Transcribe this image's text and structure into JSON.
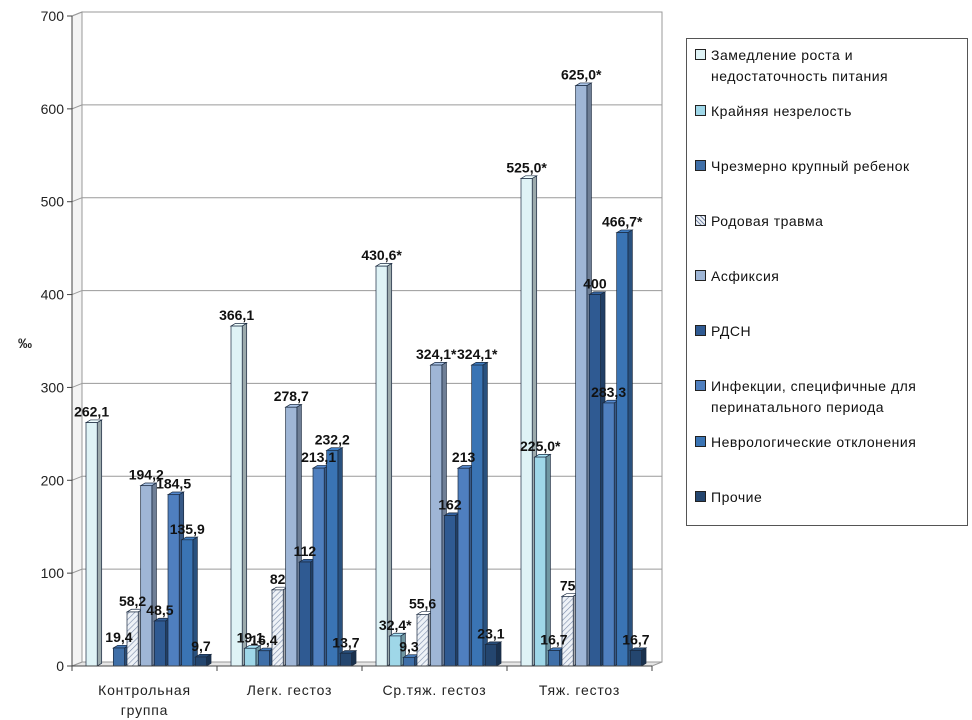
{
  "chart_data": {
    "type": "bar",
    "ylabel": "‰",
    "ylim": [
      0,
      700
    ],
    "yticks": [
      0,
      100,
      200,
      300,
      400,
      500,
      600,
      700
    ],
    "grid": true,
    "legend_position": "right",
    "categories": [
      "Контрольная группа",
      "Легк. гестоз",
      "Ср.тяж. гестоз",
      "Тяж. гестоз"
    ],
    "series": [
      {
        "name": "Замедление роста и недостаточность питания",
        "color": "#dff3f6",
        "values": [
          262.1,
          366.1,
          430.6,
          525.0
        ],
        "labels": [
          "262,1",
          "366,1",
          "430,6*",
          "525,0*"
        ]
      },
      {
        "name": "Крайняя незрелость",
        "color": "#9fd7e8",
        "values": [
          0,
          19.1,
          32.4,
          225.0
        ],
        "labels": [
          "",
          "19,1",
          "32,4*",
          "225,0*"
        ]
      },
      {
        "name": "Чрезмерно крупный ребенок",
        "color": "#3f6fa8",
        "values": [
          19.4,
          16.4,
          9.3,
          16.7
        ],
        "labels": [
          "19,4",
          "16,4",
          "9,3",
          "16,7"
        ]
      },
      {
        "name": "Родовая травма",
        "color": "#eef2f7",
        "pattern": true,
        "values": [
          58.2,
          82,
          55.6,
          75
        ],
        "labels": [
          "58,2",
          "82",
          "55,6",
          "75"
        ]
      },
      {
        "name": "Асфиксия",
        "color": "#9fb6d6",
        "values": [
          194.2,
          278.7,
          324.1,
          625.0
        ],
        "labels": [
          "194,2",
          "278,7",
          "324,1*",
          "625,0*"
        ]
      },
      {
        "name": "РДСН",
        "color": "#2f5a92",
        "values": [
          48.5,
          112,
          162,
          400
        ],
        "labels": [
          "48,5",
          "112",
          "162",
          "400"
        ]
      },
      {
        "name": "Инфекции, специфичные для перинатального периода",
        "color": "#4f7fbf",
        "values": [
          184.5,
          213.1,
          213,
          283.3
        ],
        "labels": [
          "184,5",
          "213,1",
          "213",
          "283,3"
        ]
      },
      {
        "name": "Неврологические отклонения",
        "color": "#3a74b4",
        "values": [
          135.9,
          232.2,
          324.1,
          466.7
        ],
        "labels": [
          "135,9",
          "232,2",
          "324,1*",
          "466,7*"
        ]
      },
      {
        "name": "Прочие",
        "color": "#24466f",
        "values": [
          9.7,
          13.7,
          23.1,
          16.7
        ],
        "labels": [
          "9,7",
          "13,7",
          "23,1",
          "16,7"
        ]
      }
    ]
  }
}
